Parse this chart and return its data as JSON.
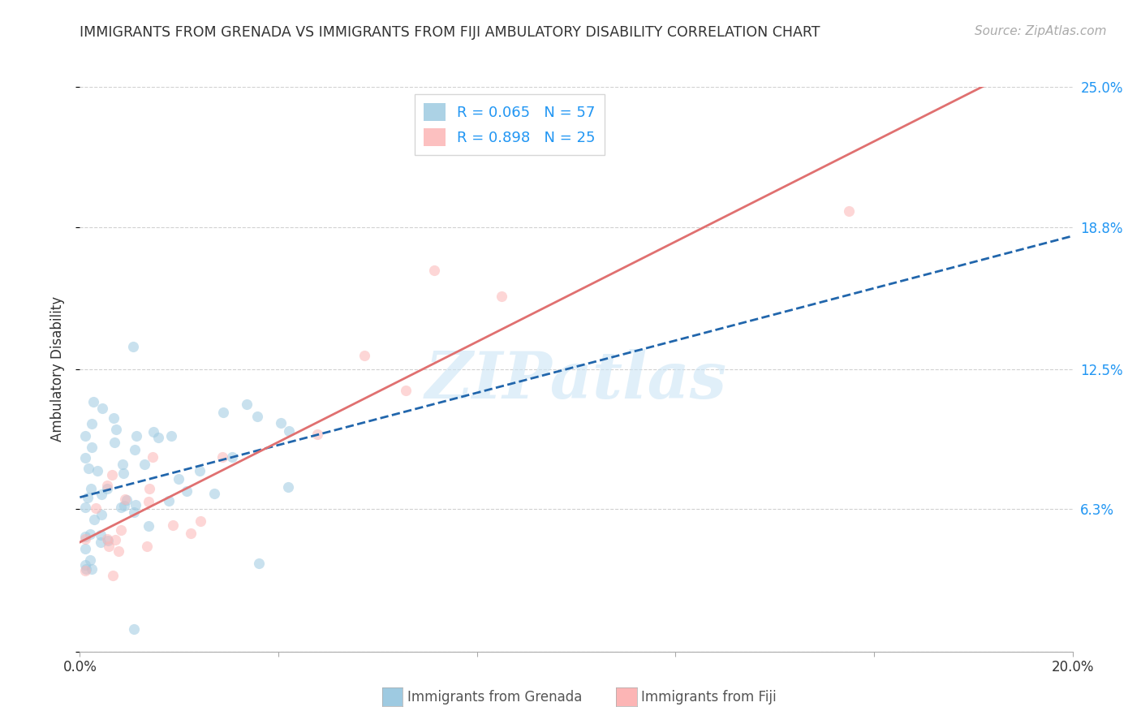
{
  "title": "IMMIGRANTS FROM GRENADA VS IMMIGRANTS FROM FIJI AMBULATORY DISABILITY CORRELATION CHART",
  "source": "Source: ZipAtlas.com",
  "ylabel": "Ambulatory Disability",
  "xlim": [
    0.0,
    0.2
  ],
  "ylim": [
    0.0,
    0.25
  ],
  "ytick_vals": [
    0.0,
    0.063,
    0.125,
    0.188,
    0.25
  ],
  "ytick_labels_right": [
    "",
    "6.3%",
    "12.5%",
    "18.8%",
    "25.0%"
  ],
  "grenada_color": "#9ecae1",
  "fiji_color": "#fcb5b5",
  "grenada_R": 0.065,
  "grenada_N": 57,
  "fiji_R": 0.898,
  "fiji_N": 25,
  "watermark": "ZIPatlas",
  "background_color": "#ffffff",
  "grid_color": "#cccccc",
  "grenada_line_color": "#2166ac",
  "fiji_line_color": "#e07070",
  "grenada_line_style": "--",
  "fiji_line_style": "-",
  "scatter_alpha": 0.55,
  "scatter_size": 90,
  "seed": 42,
  "legend_text_color": "#2196f3",
  "right_tick_color": "#2196f3"
}
